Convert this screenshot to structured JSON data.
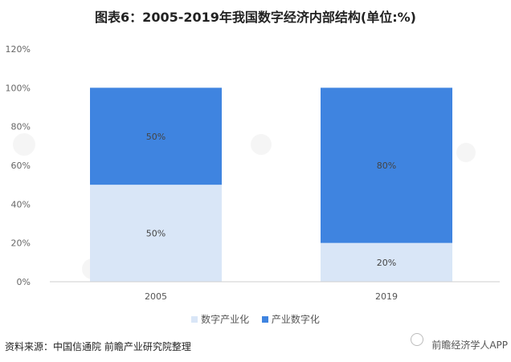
{
  "title": "图表6：2005-2019年我国数字经济内部结构(单位:%)",
  "source": "资料来源：中国信通院 前瞻产业研究院整理",
  "brand": "前瞻经济学人APP",
  "brand_icon": "wechat-icon",
  "colors": {
    "series_a": "#d9e6f7",
    "series_b": "#3f84e0"
  },
  "chart_data": {
    "type": "bar",
    "stacked": true,
    "categories": [
      "2005",
      "2019"
    ],
    "series": [
      {
        "name": "数字产业化",
        "values": [
          50,
          20
        ],
        "labels": [
          "50%",
          "20%"
        ]
      },
      {
        "name": "产业数字化",
        "values": [
          50,
          80
        ],
        "labels": [
          "50%",
          "80%"
        ]
      }
    ],
    "ylim": [
      0,
      120
    ],
    "yticks": [
      0,
      20,
      40,
      60,
      80,
      100,
      120
    ],
    "ytick_labels": [
      "0%",
      "20%",
      "40%",
      "60%",
      "80%",
      "100%",
      "120%"
    ],
    "grid": false,
    "legend": "bottom"
  }
}
